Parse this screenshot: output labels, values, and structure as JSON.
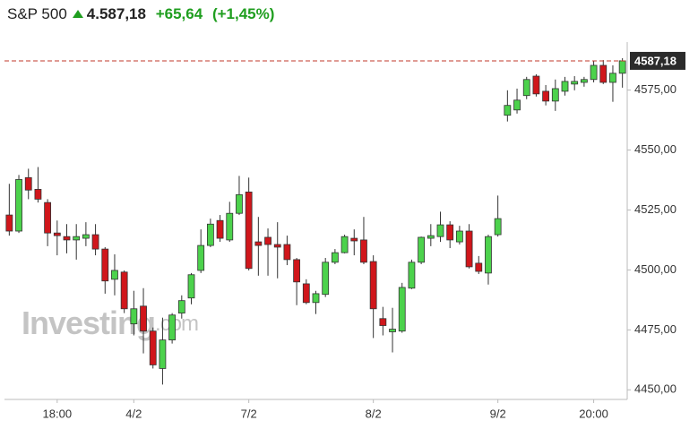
{
  "header": {
    "title": "S&P 500",
    "price": "4.587,18",
    "change": "+65,64",
    "change_pct": "(+1,45%)"
  },
  "chart_data": {
    "type": "candlestick",
    "watermark": {
      "brand": "Investing",
      "suffix": ".com"
    },
    "categories": [
      null,
      null,
      null,
      null,
      null,
      "18:00",
      null,
      null,
      null,
      null,
      null,
      null,
      null,
      "4/2",
      null,
      null,
      null,
      null,
      null,
      null,
      null,
      null,
      null,
      null,
      null,
      "7/2",
      null,
      null,
      null,
      null,
      null,
      null,
      null,
      null,
      null,
      null,
      null,
      null,
      "8/2",
      null,
      null,
      null,
      null,
      null,
      null,
      null,
      null,
      null,
      null,
      null,
      null,
      "9/2",
      null,
      null,
      null,
      null,
      null,
      null,
      null,
      null,
      null,
      "20:00",
      null,
      null,
      null
    ],
    "open": [
      4522.9,
      4516.2,
      4538.5,
      4533.6,
      4528.1,
      4515.4,
      4513.9,
      4512.5,
      4513.2,
      4514.7,
      4508.7,
      4496.1,
      4499.1,
      4477.5,
      4484.9,
      4474.5,
      4458.9,
      4470.8,
      4482.0,
      4488.3,
      4499.8,
      4510.2,
      4520.6,
      4512.5,
      4523.6,
      4532.5,
      4511.7,
      4513.6,
      4510.6,
      4510.6,
      4504.3,
      4494.2,
      4486.4,
      4489.8,
      4503.2,
      4507.2,
      4513.2,
      4512.5,
      4503.5,
      4479.7,
      4474.2,
      4474.5,
      4492.4,
      4503.2,
      4513.2,
      4513.9,
      4518.8,
      4511.7,
      4516.2,
      4502.8,
      4498.7,
      4514.7,
      4564.5,
      4566.7,
      4572.7,
      4580.8,
      4574.5,
      4570.4,
      4574.5,
      4577.5,
      4578.2,
      4579.4,
      4585.3,
      4578.2,
      4582.0
    ],
    "high": [
      4535.9,
      4539.6,
      4542.2,
      4542.9,
      4529.5,
      4520.6,
      4519.1,
      4519.1,
      4519.9,
      4519.1,
      4509.5,
      4506.5,
      4499.8,
      4491.3,
      4492.4,
      4476.0,
      4480.1,
      4482.0,
      4489.4,
      4498.7,
      4516.9,
      4521.4,
      4522.9,
      4528.4,
      4539.2,
      4538.5,
      4522.1,
      4517.3,
      4519.9,
      4514.3,
      4505.0,
      4496.1,
      4491.3,
      4505.0,
      4508.7,
      4514.7,
      4516.9,
      4522.1,
      4506.1,
      4484.6,
      4484.2,
      4494.6,
      4504.3,
      4513.9,
      4519.1,
      4524.3,
      4520.3,
      4518.4,
      4519.1,
      4505.8,
      4514.7,
      4531.0,
      4574.9,
      4575.6,
      4580.5,
      4581.6,
      4577.1,
      4579.4,
      4580.5,
      4580.8,
      4580.5,
      4587.2,
      4587.5,
      4585.3,
      4588.3
    ],
    "low": [
      4514.3,
      4515.4,
      4529.5,
      4528.1,
      4509.9,
      4506.1,
      4506.9,
      4504.3,
      4509.9,
      4506.1,
      4490.1,
      4489.4,
      4482.0,
      4472.7,
      4465.2,
      4458.9,
      4452.2,
      4469.3,
      4479.7,
      4485.7,
      4498.7,
      4509.5,
      4511.7,
      4511.7,
      4522.9,
      4499.8,
      4497.6,
      4497.6,
      4496.5,
      4502.0,
      4485.3,
      4485.7,
      4481.6,
      4488.7,
      4502.4,
      4506.9,
      4506.1,
      4502.4,
      4471.6,
      4472.7,
      4465.6,
      4473.8,
      4492.0,
      4502.4,
      4509.9,
      4511.7,
      4509.1,
      4510.6,
      4500.6,
      4498.3,
      4493.9,
      4513.9,
      4561.9,
      4565.2,
      4571.2,
      4572.3,
      4568.6,
      4566.3,
      4572.7,
      4574.9,
      4576.4,
      4578.2,
      4577.5,
      4570.1,
      4576.0
    ],
    "close": [
      4516.2,
      4537.7,
      4533.3,
      4529.5,
      4515.4,
      4514.3,
      4512.5,
      4513.9,
      4514.7,
      4508.7,
      4495.4,
      4499.8,
      4483.8,
      4483.8,
      4474.5,
      4460.4,
      4470.8,
      4481.2,
      4487.2,
      4498.0,
      4510.2,
      4519.1,
      4513.2,
      4523.6,
      4531.4,
      4500.6,
      4510.2,
      4510.6,
      4509.5,
      4504.3,
      4495.0,
      4486.4,
      4490.1,
      4503.2,
      4507.2,
      4513.9,
      4512.1,
      4503.2,
      4483.8,
      4476.8,
      4475.3,
      4492.7,
      4503.2,
      4513.6,
      4514.3,
      4518.8,
      4512.5,
      4516.2,
      4501.3,
      4499.4,
      4513.9,
      4521.4,
      4568.6,
      4570.8,
      4579.4,
      4573.4,
      4570.4,
      4575.6,
      4578.6,
      4578.6,
      4579.4,
      4585.3,
      4578.2,
      4582.0,
      4587.2
    ],
    "up_color": "#4cd24c",
    "down_color": "#d0161b",
    "last_price": {
      "value": 4587.18,
      "label": "4587,18"
    },
    "ylim": [
      4446,
      4595
    ],
    "yticks": [
      {
        "value": 4450,
        "label": "4450,00"
      },
      {
        "value": 4475,
        "label": "4475,00"
      },
      {
        "value": 4500,
        "label": "4500,00"
      },
      {
        "value": 4525,
        "label": "4525,00"
      },
      {
        "value": 4550,
        "label": "4550,00"
      },
      {
        "value": 4575,
        "label": "4575,00"
      }
    ]
  }
}
